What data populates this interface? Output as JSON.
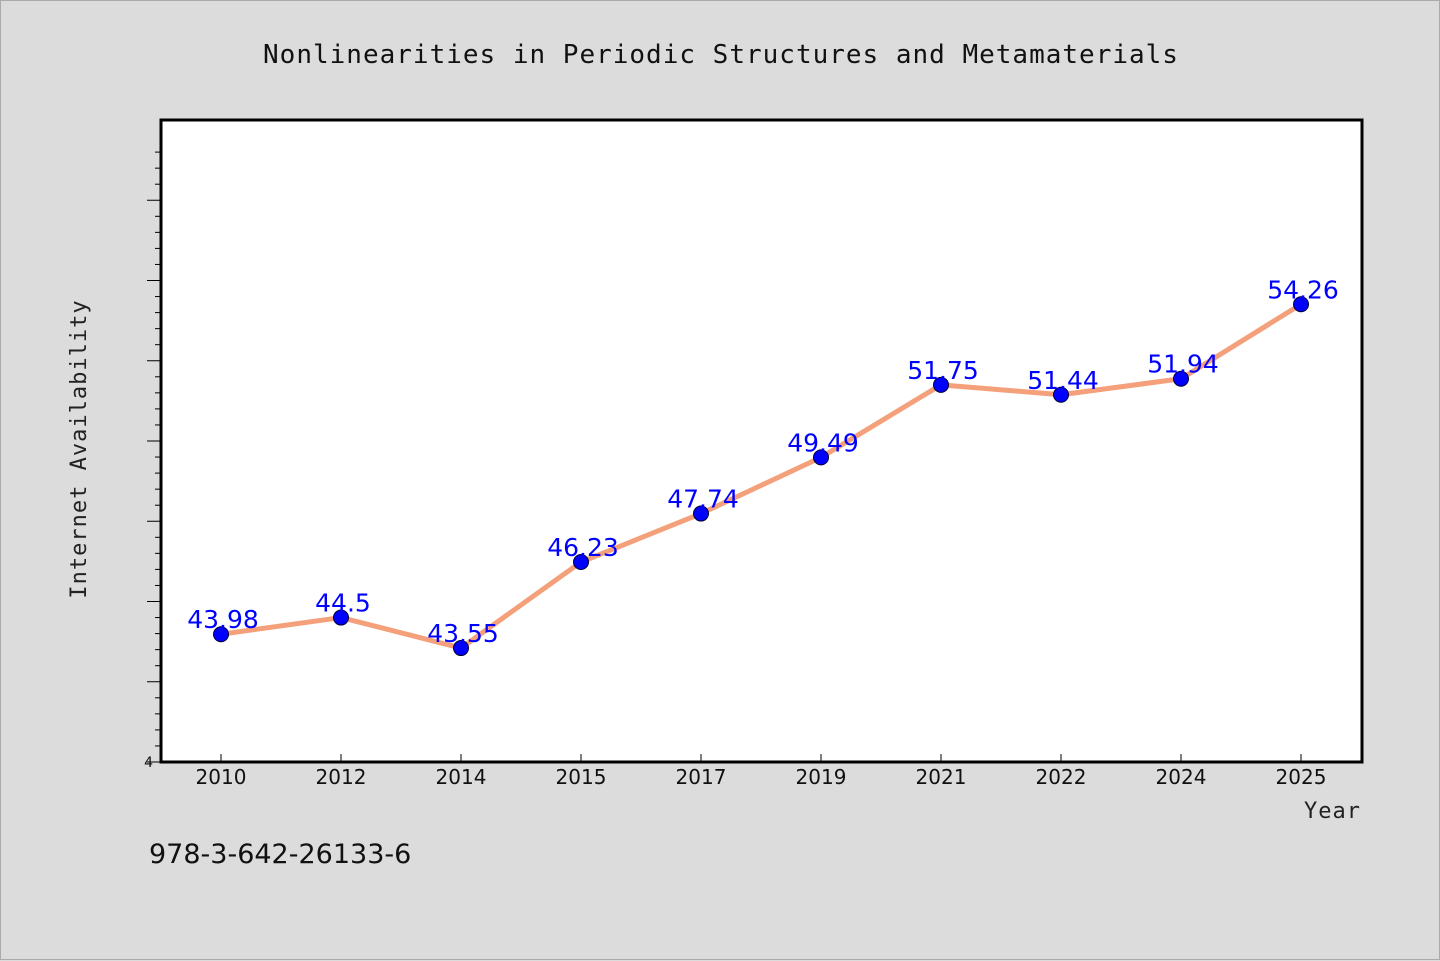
{
  "chart_data": {
    "type": "line",
    "title": "Nonlinearities in Periodic Structures and Metamaterials",
    "xlabel": "Year",
    "ylabel": "Internet Availability",
    "categories": [
      "2010",
      "2012",
      "2014",
      "2015",
      "2017",
      "2019",
      "2021",
      "2022",
      "2024",
      "2025"
    ],
    "series": [
      {
        "values": [
          43.98,
          44.5,
          43.55,
          46.23,
          47.74,
          49.49,
          51.75,
          51.44,
          51.94,
          54.26
        ],
        "value_labels": [
          "43.98",
          "44.5",
          "43.55",
          "46.23",
          "47.74",
          "49.49",
          "51.75",
          "51.44",
          "51.94",
          "54.26"
        ],
        "line_color": "#f4a07a",
        "marker_color": "#0000ff"
      }
    ],
    "ylim": [
      40,
      60
    ],
    "ytick_labels": [
      "4"
    ],
    "grid": false,
    "legend": "none"
  },
  "footer": {
    "isbn": "978-3-642-26133-6"
  }
}
